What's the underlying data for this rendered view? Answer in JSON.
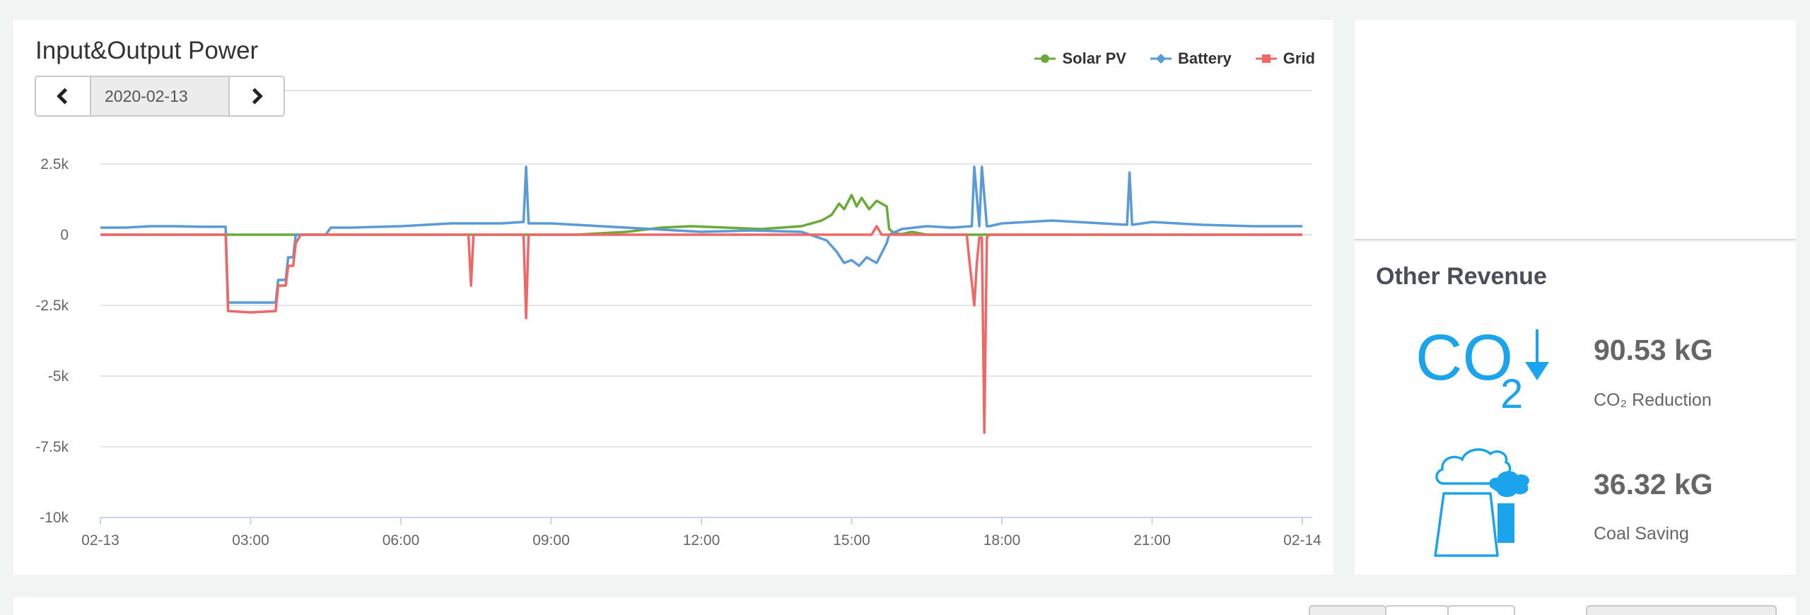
{
  "chart_panel": {
    "title": "Input&Output Power",
    "date": "2020-02-13",
    "legend": [
      {
        "name": "Solar PV",
        "color": "#6aaa3a",
        "marker": "circle"
      },
      {
        "name": "Battery",
        "color": "#5b9bd5",
        "marker": "diamond"
      },
      {
        "name": "Grid",
        "color": "#f06767",
        "marker": "square"
      }
    ]
  },
  "chart_data": {
    "type": "line",
    "xlabel": "",
    "ylabel": "",
    "x_unit": "hours",
    "xlim": [
      0,
      24
    ],
    "ylim": [
      -10000,
      2500
    ],
    "y_ticks": [
      2500,
      0,
      -2500,
      -5000,
      -7500,
      -10000
    ],
    "y_tick_labels": [
      "2.5k",
      "0",
      "-2.5k",
      "-5k",
      "-7.5k",
      "-10k"
    ],
    "x_ticks": [
      0,
      3,
      6,
      9,
      12,
      15,
      18,
      21,
      24
    ],
    "x_tick_labels": [
      "02-13",
      "03:00",
      "06:00",
      "09:00",
      "12:00",
      "15:00",
      "18:00",
      "21:00",
      "02-14"
    ],
    "grid": true,
    "legend_position": "top-right",
    "series": [
      {
        "name": "Solar PV",
        "color": "#6aaa3a",
        "x": [
          0,
          2.5,
          4.0,
          9.5,
          10.5,
          11.2,
          11.8,
          12.5,
          13.2,
          14.0,
          14.4,
          14.6,
          14.75,
          14.85,
          15.0,
          15.1,
          15.2,
          15.35,
          15.5,
          15.6,
          15.7,
          15.75,
          15.85,
          16.0,
          16.2,
          16.5,
          17.5,
          24
        ],
        "y": [
          0,
          0,
          0,
          0,
          100,
          250,
          300,
          250,
          200,
          300,
          500,
          700,
          1100,
          900,
          1400,
          1000,
          1300,
          900,
          1200,
          1100,
          1000,
          200,
          50,
          20,
          100,
          0,
          0,
          0
        ]
      },
      {
        "name": "Battery",
        "color": "#5b9bd5",
        "x": [
          0,
          0.5,
          1.0,
          1.5,
          2.0,
          2.5,
          2.55,
          3.5,
          3.55,
          3.7,
          3.75,
          3.85,
          3.9,
          4.0,
          4.5,
          4.6,
          5.0,
          6.0,
          7.0,
          8.0,
          8.45,
          8.5,
          8.55,
          9.0,
          10.0,
          11.0,
          12.0,
          13.0,
          14.0,
          14.5,
          14.7,
          14.85,
          15.0,
          15.15,
          15.3,
          15.5,
          15.7,
          15.75,
          16.0,
          16.5,
          17.0,
          17.4,
          17.45,
          17.55,
          17.6,
          17.7,
          17.75,
          18.0,
          19.0,
          20.0,
          20.5,
          20.55,
          20.6,
          21.0,
          22.0,
          23.0,
          24.0
        ],
        "y": [
          250,
          250,
          300,
          300,
          280,
          280,
          -2400,
          -2400,
          -1600,
          -1600,
          -800,
          -800,
          0,
          0,
          0,
          250,
          250,
          300,
          400,
          400,
          450,
          2400,
          400,
          400,
          300,
          200,
          100,
          150,
          100,
          -200,
          -600,
          -1000,
          -900,
          -1100,
          -800,
          -1000,
          -300,
          0,
          200,
          300,
          250,
          300,
          2400,
          300,
          2400,
          300,
          300,
          400,
          500,
          400,
          350,
          2200,
          350,
          450,
          350,
          300,
          300
        ]
      },
      {
        "name": "Grid",
        "color": "#f06767",
        "x": [
          0,
          2.5,
          2.55,
          3.0,
          3.5,
          3.55,
          3.7,
          3.75,
          3.85,
          3.9,
          4.0,
          7.35,
          7.4,
          7.45,
          8.45,
          8.5,
          8.55,
          15.4,
          15.5,
          15.6,
          17.3,
          17.35,
          17.45,
          17.5,
          17.55,
          17.6,
          17.65,
          17.7,
          17.75,
          17.8,
          24
        ],
        "y": [
          0,
          0,
          -2700,
          -2750,
          -2700,
          -1800,
          -1800,
          -1100,
          -1100,
          -300,
          0,
          0,
          -1800,
          0,
          0,
          -2950,
          0,
          0,
          300,
          0,
          0,
          -900,
          -2500,
          -1000,
          -100,
          -100,
          -7000,
          -100,
          0,
          0,
          0
        ]
      }
    ]
  },
  "other_revenue": {
    "title": "Other Revenue",
    "items": [
      {
        "icon": "co2-reduction-icon",
        "value": "90.53 kG",
        "label": "CO₂ Reduction"
      },
      {
        "icon": "coal-factory-icon",
        "value": "36.32 kG",
        "label": "Coal Saving"
      }
    ],
    "accent_color": "#1ba3ec"
  }
}
